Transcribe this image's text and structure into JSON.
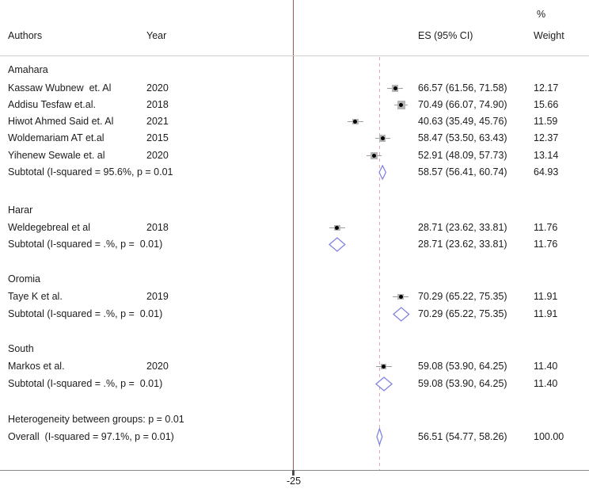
{
  "header": {
    "authors": "Authors",
    "year": "Year",
    "es_ci": "ES (95% CI)",
    "weight_pct": "%",
    "weight": "Weight"
  },
  "colors": {
    "solid_ref_line": "#9c5353",
    "dashed_overall_line": "#dcaeae",
    "diamond_outline": "#7b7de2",
    "ci_line": "#9e9e9e",
    "weight_box": "#b5b5b5",
    "marker": "#000000",
    "axis_line": "#8a8a8a",
    "tick": "#4d4d4d",
    "header_separator": "#cfcfcf",
    "text": "#1c1c1c"
  },
  "chart_data": {
    "type": "forest",
    "axis": {
      "tick_label": "-25",
      "solid_line_value": 0,
      "dashed_line_value": 56.51
    },
    "groups": [
      {
        "name": "Amahara",
        "studies": [
          {
            "author": "Kassaw Wubnew  et. Al",
            "year": "2020",
            "es": 66.57,
            "lo": 61.56,
            "hi": 71.58,
            "es_ci": "66.57 (61.56, 71.58)",
            "weight": "12.17"
          },
          {
            "author": "Addisu Tesfaw et.al.",
            "year": "2018",
            "es": 70.49,
            "lo": 66.07,
            "hi": 74.9,
            "es_ci": "70.49 (66.07, 74.90)",
            "weight": "15.66"
          },
          {
            "author": "Hiwot Ahmed Said et. Al",
            "year": "2021",
            "es": 40.63,
            "lo": 35.49,
            "hi": 45.76,
            "es_ci": "40.63 (35.49, 45.76)",
            "weight": "11.59"
          },
          {
            "author": "Woldemariam AT et.al",
            "year": "2015",
            "es": 58.47,
            "lo": 53.5,
            "hi": 63.43,
            "es_ci": "58.47 (53.50, 63.43)",
            "weight": "12.37"
          },
          {
            "author": "Yihenew Sewale et. al",
            "year": "2020",
            "es": 52.91,
            "lo": 48.09,
            "hi": 57.73,
            "es_ci": "52.91 (48.09, 57.73)",
            "weight": "13.14"
          }
        ],
        "subtotal": {
          "label": "Subtotal (I-squared = 95.6%, p = 0.01",
          "es": 58.57,
          "lo": 56.41,
          "hi": 60.74,
          "es_ci": "58.57 (56.41, 60.74)",
          "weight": "64.93"
        }
      },
      {
        "name": "Harar",
        "studies": [
          {
            "author": "Weldegebreal et al",
            "year": "2018",
            "es": 28.71,
            "lo": 23.62,
            "hi": 33.81,
            "es_ci": "28.71 (23.62, 33.81)",
            "weight": "11.76"
          }
        ],
        "subtotal": {
          "label": "Subtotal (I-squared = .%, p =  0.01)",
          "es": 28.71,
          "lo": 23.62,
          "hi": 33.81,
          "es_ci": "28.71 (23.62, 33.81)",
          "weight": "11.76"
        }
      },
      {
        "name": "Oromia",
        "studies": [
          {
            "author": "Taye K et al.",
            "year": "2019",
            "es": 70.29,
            "lo": 65.22,
            "hi": 75.35,
            "es_ci": "70.29 (65.22, 75.35)",
            "weight": "11.91"
          }
        ],
        "subtotal": {
          "label": "Subtotal (I-squared = .%, p =  0.01)",
          "es": 70.29,
          "lo": 65.22,
          "hi": 75.35,
          "es_ci": "70.29 (65.22, 75.35)",
          "weight": "11.91"
        }
      },
      {
        "name": "South",
        "studies": [
          {
            "author": "Markos et al.",
            "year": "2020",
            "es": 59.08,
            "lo": 53.9,
            "hi": 64.25,
            "es_ci": "59.08 (53.90, 64.25)",
            "weight": "11.40"
          }
        ],
        "subtotal": {
          "label": "Subtotal (I-squared = .%, p =  0.01)",
          "es": 59.08,
          "lo": 53.9,
          "hi": 64.25,
          "es_ci": "59.08 (53.90, 64.25)",
          "weight": "11.40"
        }
      }
    ],
    "heterogeneity_note": "Heterogeneity between groups: p = 0.01",
    "overall": {
      "label": "Overall  (I-squared = 97.1%, p = 0.01)",
      "es": 56.51,
      "lo": 54.77,
      "hi": 58.26,
      "es_ci": "56.51 (54.77, 58.26)",
      "weight": "100.00"
    }
  }
}
